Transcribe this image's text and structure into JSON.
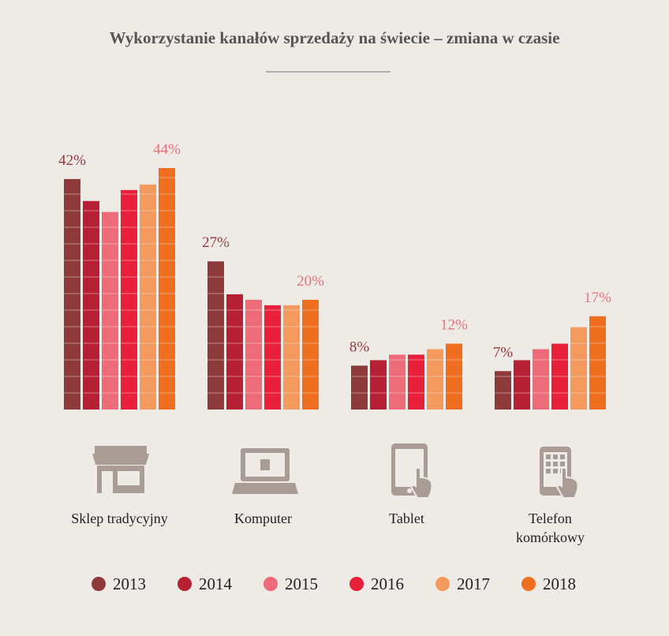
{
  "chart_data": {
    "type": "bar",
    "title": "Wykorzystanie kanałów sprzedaży na świecie – zmiana w czasie",
    "categories": [
      "Sklep tradycyjny",
      "Komputer",
      "Tablet",
      "Telefon komórkowy"
    ],
    "ylim": [
      0,
      44
    ],
    "series": [
      {
        "name": "2013",
        "color": "#8e3a3b",
        "values": [
          42,
          27,
          8,
          7
        ],
        "value_labels": [
          "42%",
          "27%",
          "8%",
          "7%"
        ],
        "label_color": "#8e3a3b"
      },
      {
        "name": "2014",
        "color": "#b71f35",
        "values": [
          38,
          21,
          9,
          9
        ]
      },
      {
        "name": "2015",
        "color": "#ee6b7a",
        "values": [
          36,
          20,
          10,
          11
        ]
      },
      {
        "name": "2016",
        "color": "#e8203a",
        "values": [
          40,
          19,
          10,
          12
        ]
      },
      {
        "name": "2017",
        "color": "#f59a5e",
        "values": [
          41,
          19,
          11,
          15
        ]
      },
      {
        "name": "2018",
        "color": "#ef6e1f",
        "values": [
          44,
          20,
          12,
          17
        ],
        "value_labels": [
          "44%",
          "20%",
          "12%",
          "17%"
        ],
        "label_color": "#e8707a"
      }
    ]
  }
}
